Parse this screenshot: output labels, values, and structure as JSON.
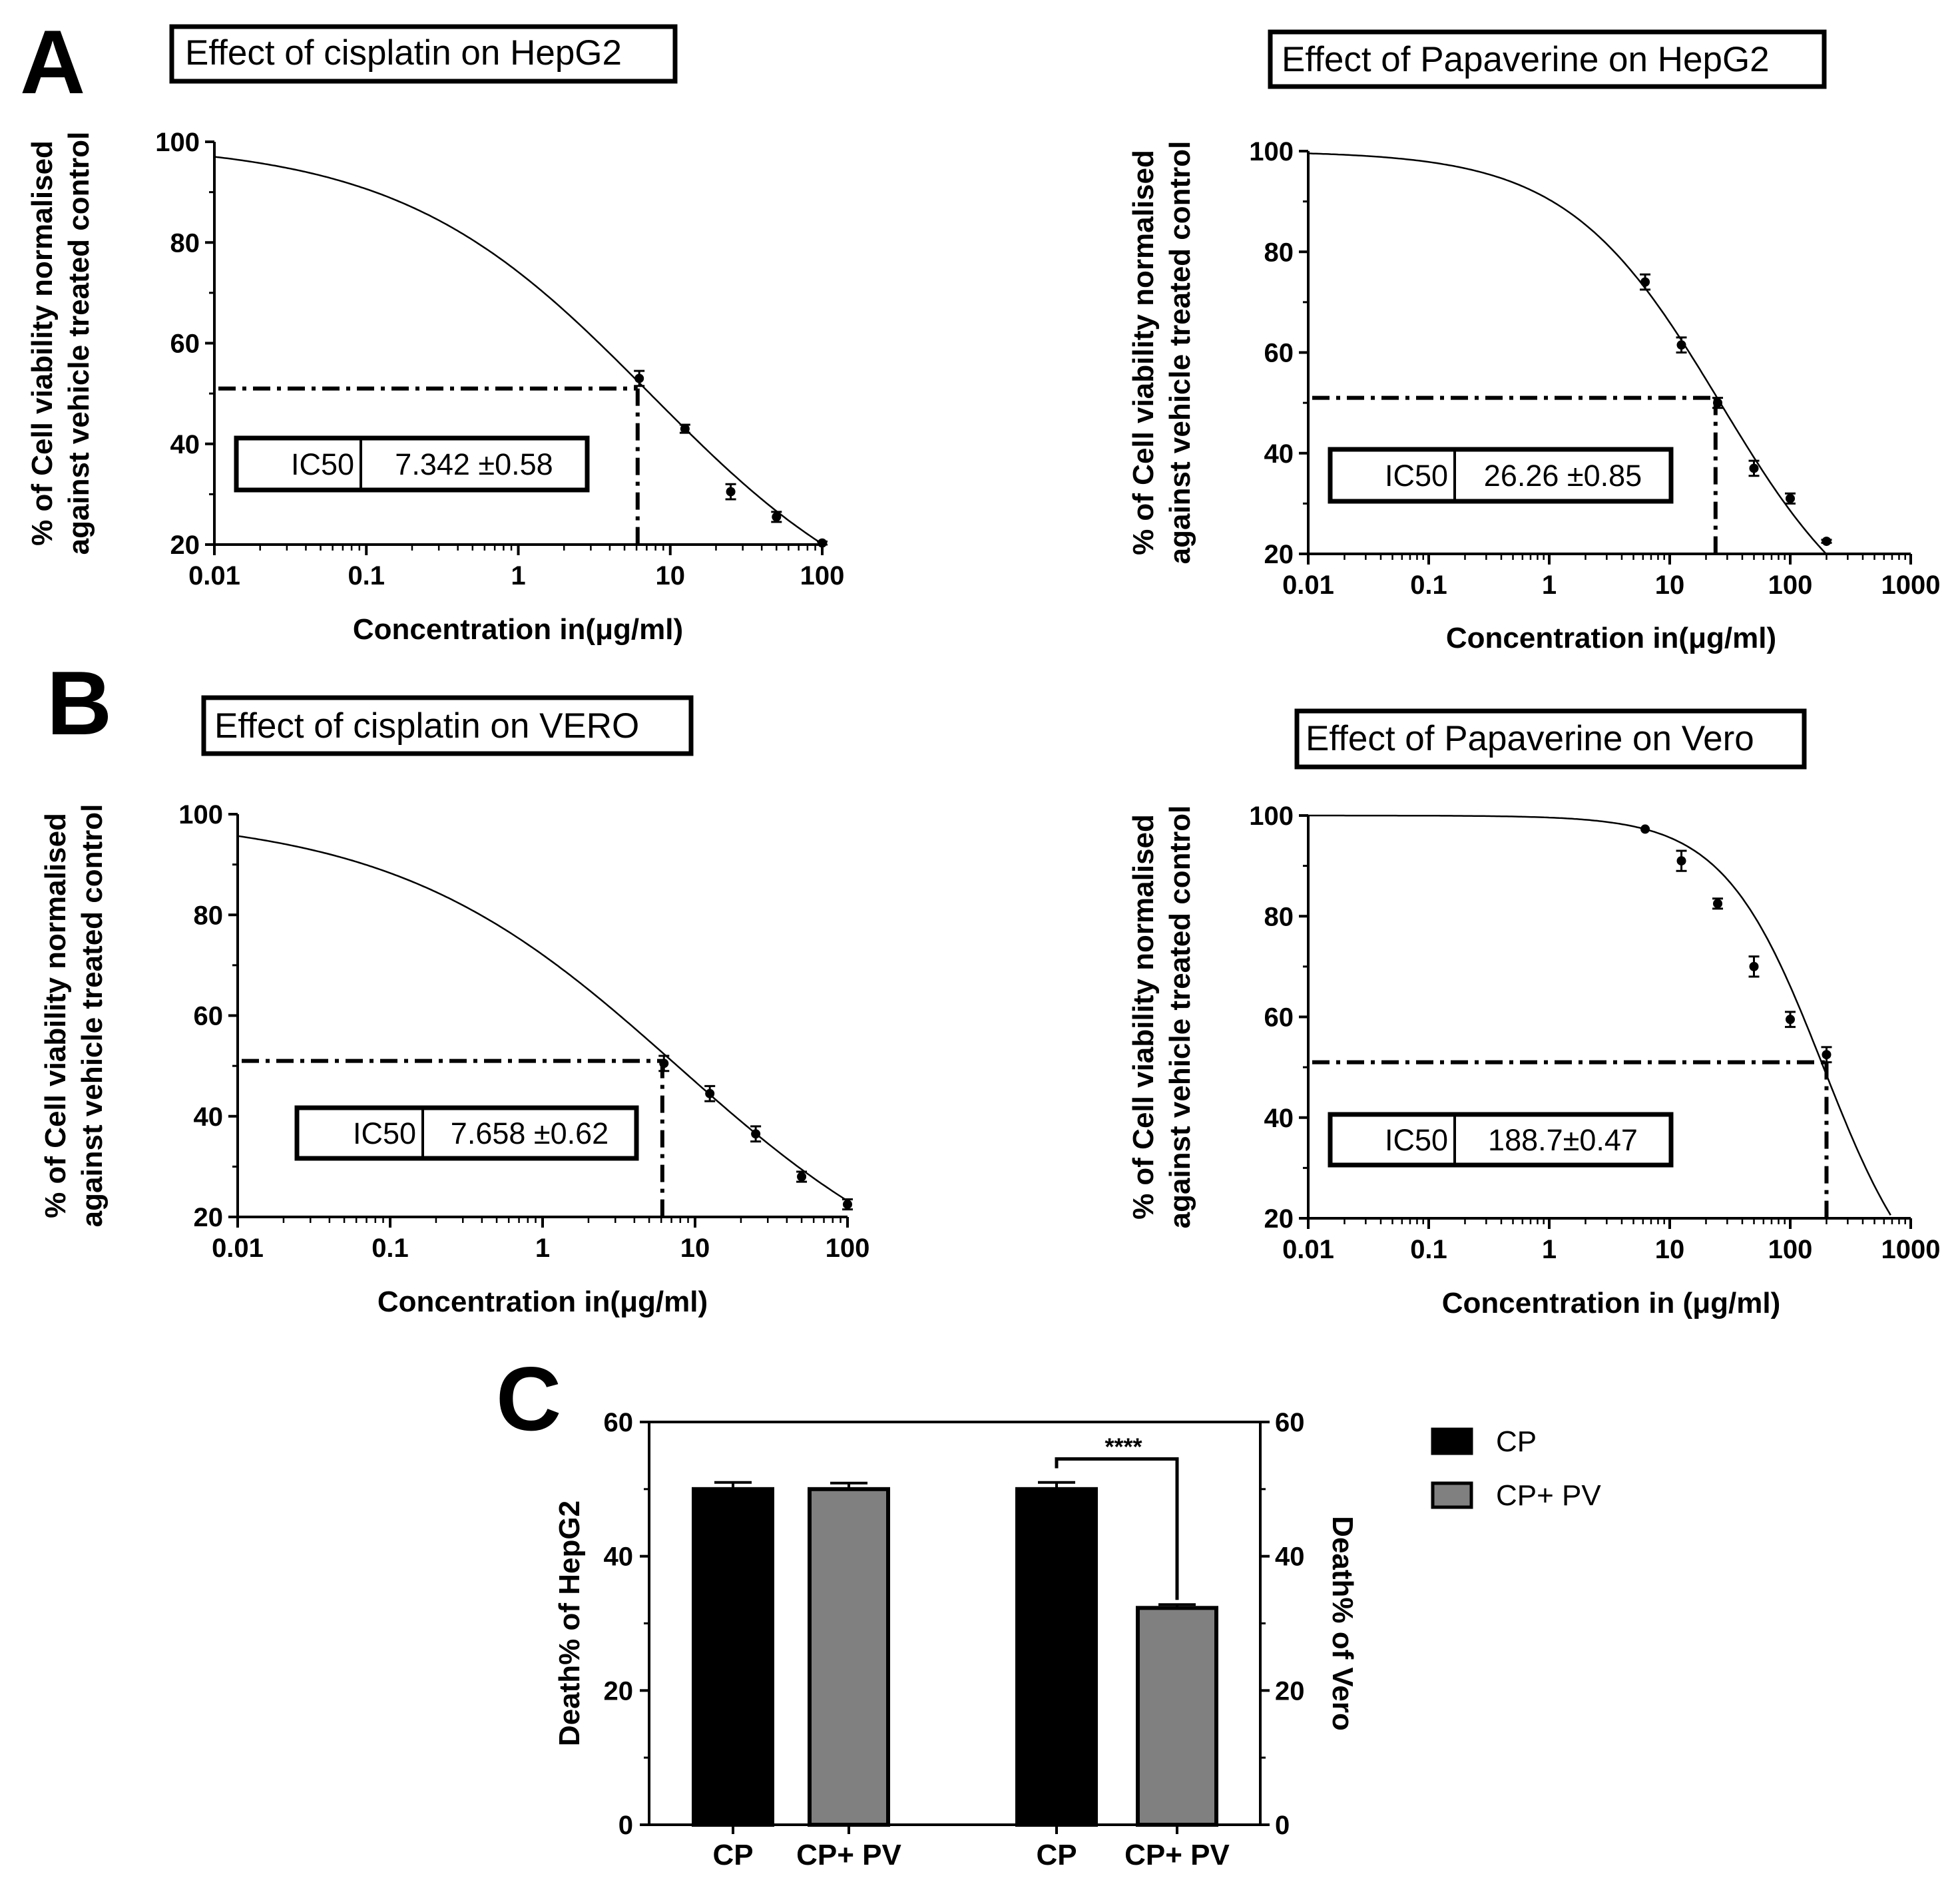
{
  "panel_labels": [
    "A",
    "B",
    "C"
  ],
  "chart_data": [
    {
      "type": "line",
      "panel": "A",
      "title": "Effect of cisplatin on HepG2",
      "xlabel": "Concentration in(μg/ml)",
      "ylabel": [
        "% of Cell viability normalised",
        "against vehicle treated control"
      ],
      "x_scale": "log",
      "xlim": [
        0.01,
        100
      ],
      "ylim": [
        20,
        100
      ],
      "x_ticks": [
        0.01,
        0.1,
        1,
        10,
        100
      ],
      "x_tick_labels": [
        "0.01",
        "0.1",
        "1",
        "10",
        "100"
      ],
      "y_ticks": [
        20,
        40,
        60,
        80,
        100
      ],
      "y_tick_labels": [
        "20",
        "40",
        "60",
        "80",
        "100"
      ],
      "points": [
        {
          "x": 6.25,
          "y": 53.0,
          "err": 1.5
        },
        {
          "x": 12.5,
          "y": 43.0,
          "err": 0.8
        },
        {
          "x": 25,
          "y": 30.5,
          "err": 1.5
        },
        {
          "x": 50,
          "y": 25.5,
          "err": 1.0
        },
        {
          "x": 100,
          "y": 20.3,
          "err": 0.3
        }
      ],
      "fit": {
        "bottom": 0,
        "top": 100,
        "ic50": 7.342,
        "hill": 0.528
      },
      "ic50_line": {
        "x": 6.1,
        "y": 51
      },
      "ic50_box": {
        "label": "IC50",
        "value": "7.342 ±0.58"
      },
      "grid": false
    },
    {
      "type": "line",
      "panel": "A",
      "title": "Effect of Papaverine on HepG2",
      "xlabel": "Concentration in(μg/ml)",
      "ylabel": [
        "% of Cell viability normalised",
        "against vehicle treated control"
      ],
      "x_scale": "log",
      "xlim": [
        0.01,
        1000
      ],
      "ylim": [
        20,
        100
      ],
      "x_ticks": [
        0.01,
        0.1,
        1,
        10,
        100,
        1000
      ],
      "x_tick_labels": [
        "0.01",
        "0.1",
        "1",
        "10",
        "100",
        "1000"
      ],
      "y_ticks": [
        20,
        40,
        60,
        80,
        100
      ],
      "y_tick_labels": [
        "20",
        "40",
        "60",
        "80",
        "100"
      ],
      "points": [
        {
          "x": 6.25,
          "y": 74.0,
          "err": 1.5
        },
        {
          "x": 12.5,
          "y": 61.5,
          "err": 1.5
        },
        {
          "x": 25,
          "y": 50.0,
          "err": 1.0
        },
        {
          "x": 50,
          "y": 37.0,
          "err": 1.5
        },
        {
          "x": 100,
          "y": 31.0,
          "err": 1.0
        },
        {
          "x": 200,
          "y": 22.5,
          "err": 0.3
        }
      ],
      "fit": {
        "bottom": 0,
        "top": 100,
        "ic50": 26.26,
        "hill": 0.685
      },
      "ic50_line": {
        "x": 24,
        "y": 51
      },
      "ic50_box": {
        "label": "IC50",
        "value": "26.26 ±0.85"
      },
      "grid": false
    },
    {
      "type": "line",
      "panel": "B",
      "title": "Effect of cisplatin on VERO",
      "xlabel": "Concentration in(μg/ml)",
      "ylabel": [
        "% of Cell viability normalised",
        "against vehicle treated control"
      ],
      "x_scale": "log",
      "xlim": [
        0.01,
        100
      ],
      "ylim": [
        20,
        100
      ],
      "x_ticks": [
        0.01,
        0.1,
        1,
        10,
        100
      ],
      "x_tick_labels": [
        "0.01",
        "0.1",
        "1",
        "10",
        "100"
      ],
      "y_ticks": [
        20,
        40,
        60,
        80,
        100
      ],
      "y_tick_labels": [
        "20",
        "40",
        "60",
        "80",
        "100"
      ],
      "points": [
        {
          "x": 6.25,
          "y": 50.5,
          "err": 1.5
        },
        {
          "x": 12.5,
          "y": 44.5,
          "err": 1.5
        },
        {
          "x": 25,
          "y": 36.5,
          "err": 1.5
        },
        {
          "x": 50,
          "y": 28.0,
          "err": 1.0
        },
        {
          "x": 100,
          "y": 22.5,
          "err": 1.0
        }
      ],
      "fit": {
        "bottom": 0,
        "top": 100,
        "ic50": 7.658,
        "hill": 0.466
      },
      "ic50_line": {
        "x": 6.1,
        "y": 51
      },
      "ic50_box": {
        "label": "IC50",
        "value": "7.658 ±0.62"
      },
      "grid": false
    },
    {
      "type": "line",
      "panel": "B",
      "title": "Effect of Papaverine on Vero",
      "xlabel": "Concentration in (μg/ml)",
      "ylabel": [
        "% of Cell viability normalised",
        "against vehicle treated control"
      ],
      "x_scale": "log",
      "xlim": [
        0.01,
        1000
      ],
      "ylim": [
        20,
        100
      ],
      "x_ticks": [
        0.01,
        0.1,
        1,
        10,
        100,
        1000
      ],
      "x_tick_labels": [
        "0.01",
        "0.1",
        "1",
        "10",
        "100",
        "1000"
      ],
      "y_ticks": [
        20,
        40,
        60,
        80,
        100
      ],
      "y_tick_labels": [
        "20",
        "40",
        "60",
        "80",
        "100"
      ],
      "points": [
        {
          "x": 6.25,
          "y": 97.3,
          "err": 0
        },
        {
          "x": 12.5,
          "y": 91.0,
          "err": 2.0
        },
        {
          "x": 25,
          "y": 82.5,
          "err": 1.0
        },
        {
          "x": 50,
          "y": 70.0,
          "err": 2.0
        },
        {
          "x": 100,
          "y": 59.5,
          "err": 1.5
        },
        {
          "x": 200,
          "y": 52.5,
          "err": 1.5
        }
      ],
      "fit": {
        "bottom": 0,
        "top": 100,
        "ic50": 188.7,
        "hill": 1.05
      },
      "ic50_line": {
        "x": 200,
        "y": 51
      },
      "ic50_box": {
        "label": "IC50",
        "value": "188.7±0.47"
      },
      "grid": false
    },
    {
      "type": "bar",
      "panel": "C",
      "categories": [
        "CP",
        "CP+ PV",
        "CP",
        "CP+ PV"
      ],
      "series": [
        {
          "name": "CP",
          "color": "#000000"
        },
        {
          "name": "CP+ PV",
          "color": "#808080"
        }
      ],
      "bars": [
        {
          "category": "CP",
          "series": "CP",
          "value": 50,
          "err": 1.0,
          "axis": "left"
        },
        {
          "category": "CP+ PV",
          "series": "CP+ PV",
          "value": 50,
          "err": 0.9,
          "axis": "left"
        },
        {
          "category": "CP",
          "series": "CP",
          "value": 50,
          "err": 1.0,
          "axis": "right"
        },
        {
          "category": "CP+ PV",
          "series": "CP+ PV",
          "value": 32.3,
          "err": 0.5,
          "axis": "right"
        }
      ],
      "ylabel_left": "Death% of HepG2",
      "ylabel_right": "Death% of Vero",
      "ylim": [
        0,
        60
      ],
      "y_ticks": [
        0,
        20,
        40,
        60
      ],
      "y_tick_labels": [
        "0",
        "20",
        "40",
        "60"
      ],
      "significance": "****",
      "legend_position": "right",
      "grid": false
    }
  ]
}
